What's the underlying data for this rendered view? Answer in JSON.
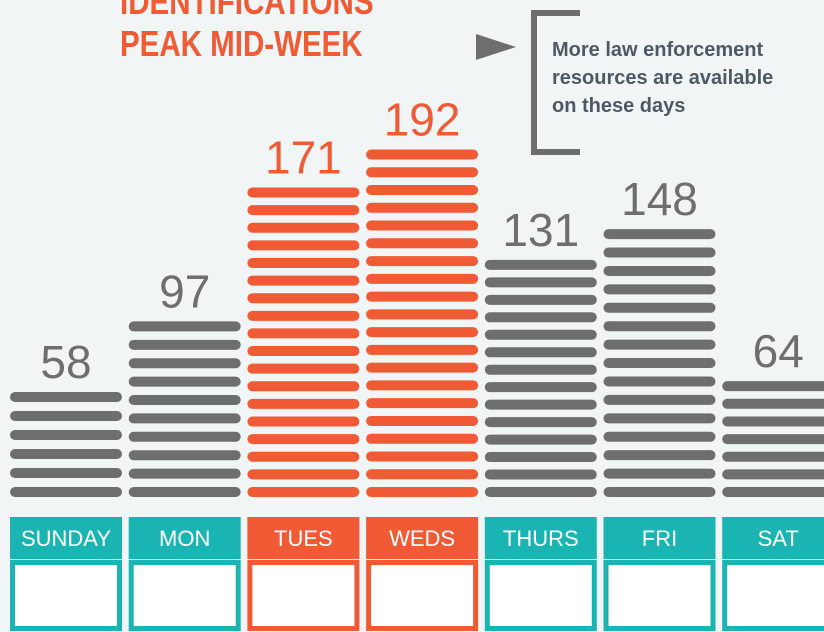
{
  "chart_data": {
    "type": "bar",
    "title": [
      "IDENTIFICATIONS",
      "PEAK MID-WEEK"
    ],
    "annotation": [
      "More law enforcement",
      "resources are available",
      "on these days"
    ],
    "categories": [
      "SUNDAY",
      "MON",
      "TUES",
      "WEDS",
      "THURS",
      "FRI",
      "SAT"
    ],
    "values": [
      58,
      97,
      171,
      192,
      131,
      148,
      64
    ],
    "colors": [
      "#6d6e70",
      "#6d6e70",
      "#f05a35",
      "#f05a35",
      "#6d6e70",
      "#6d6e70",
      "#6d6e70"
    ],
    "label_colors": [
      "#1ab5b3",
      "#1ab5b3",
      "#f05a35",
      "#f05a35",
      "#1ab5b3",
      "#1ab5b3",
      "#1ab5b3"
    ]
  }
}
